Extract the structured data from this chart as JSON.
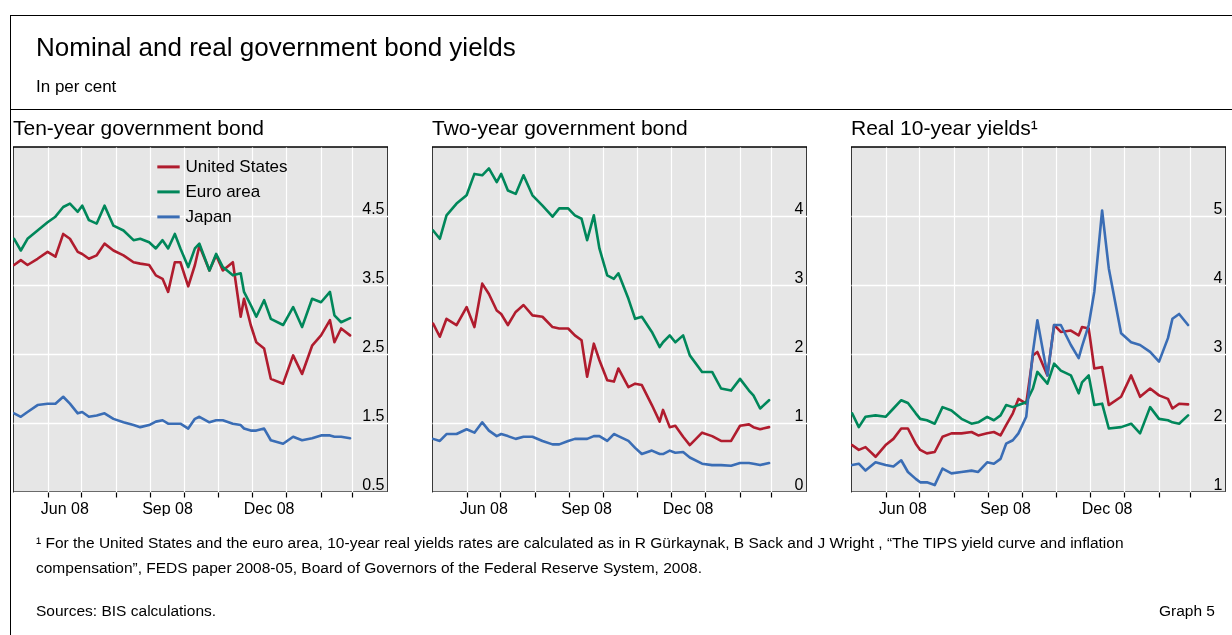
{
  "chart_data": [
    {
      "type": "other",
      "title": "Nominal and real government bond yields",
      "subtitle": "In per cent"
    },
    {
      "type": "line",
      "title": "Ten-year government bond",
      "legend": "top",
      "grid": true,
      "x": [
        "2008-05-02",
        "2008-05-08",
        "2008-05-14",
        "2008-05-23",
        "2008-06-01",
        "2008-06-08",
        "2008-06-15",
        "2008-06-21",
        "2008-06-28",
        "2008-07-02",
        "2008-07-08",
        "2008-07-15",
        "2008-07-22",
        "2008-07-30",
        "2008-08-08",
        "2008-08-17",
        "2008-08-23",
        "2008-08-31",
        "2008-09-06",
        "2008-09-12",
        "2008-09-17",
        "2008-09-23",
        "2008-09-28",
        "2008-10-05",
        "2008-10-11",
        "2008-10-15",
        "2008-10-24",
        "2008-10-30",
        "2008-11-05",
        "2008-11-14",
        "2008-11-21",
        "2008-11-24",
        "2008-11-30",
        "2008-12-05",
        "2008-12-12",
        "2008-12-18",
        "2008-12-29",
        "2009-01-07",
        "2009-01-15",
        "2009-01-24",
        "2009-02-01",
        "2009-02-09",
        "2009-02-13",
        "2009-02-19",
        "2009-02-27"
      ],
      "xlim": [
        "2008-05-01",
        "2009-04-02"
      ],
      "xticks": [
        {
          "value": "2008-06-01",
          "label": null
        },
        {
          "value": "2008-06-16",
          "label": "Jun 08"
        },
        {
          "value": "2008-07-01",
          "label": null
        },
        {
          "value": "2008-08-01",
          "label": null
        },
        {
          "value": "2008-09-01",
          "label": null
        },
        {
          "value": "2008-09-16",
          "label": "Sep 08"
        },
        {
          "value": "2008-10-01",
          "label": null
        },
        {
          "value": "2008-11-01",
          "label": null
        },
        {
          "value": "2008-12-01",
          "label": null
        },
        {
          "value": "2008-12-16",
          "label": "Dec 08"
        },
        {
          "value": "2009-01-01",
          "label": null
        },
        {
          "value": "2009-02-01",
          "label": null
        },
        {
          "value": "2009-03-01",
          "label": null
        }
      ],
      "ylim": [
        0.5,
        5.5
      ],
      "yticks": [
        0.5,
        1.5,
        2.5,
        3.5,
        4.5
      ],
      "series": [
        {
          "name": "United States",
          "color": "#b01c2e",
          "values": [
            3.79,
            3.86,
            3.79,
            3.88,
            3.98,
            3.91,
            4.24,
            4.17,
            3.98,
            3.95,
            3.88,
            3.93,
            4.1,
            4.0,
            3.93,
            3.83,
            3.81,
            3.79,
            3.64,
            3.59,
            3.4,
            3.83,
            3.83,
            3.48,
            3.79,
            4.07,
            3.71,
            3.93,
            3.71,
            3.83,
            3.04,
            3.3,
            2.92,
            2.67,
            2.58,
            2.14,
            2.07,
            2.48,
            2.21,
            2.62,
            2.77,
            2.99,
            2.67,
            2.87,
            2.77
          ]
        },
        {
          "name": "Euro area",
          "color": "#00875a",
          "values": [
            4.17,
            4.0,
            4.17,
            4.29,
            4.41,
            4.49,
            4.63,
            4.68,
            4.56,
            4.65,
            4.44,
            4.39,
            4.65,
            4.36,
            4.29,
            4.15,
            4.17,
            4.12,
            4.03,
            4.15,
            4.03,
            4.24,
            4.03,
            3.76,
            4.03,
            4.1,
            3.71,
            3.95,
            3.76,
            3.64,
            3.67,
            3.4,
            3.21,
            3.04,
            3.28,
            3.01,
            2.92,
            3.18,
            2.89,
            3.3,
            3.25,
            3.4,
            3.06,
            2.96,
            3.02
          ]
        },
        {
          "name": "Japan",
          "color": "#3a6db5",
          "values": [
            1.64,
            1.59,
            1.66,
            1.76,
            1.78,
            1.78,
            1.88,
            1.78,
            1.64,
            1.66,
            1.59,
            1.61,
            1.64,
            1.56,
            1.51,
            1.47,
            1.44,
            1.47,
            1.52,
            1.54,
            1.49,
            1.49,
            1.49,
            1.42,
            1.56,
            1.59,
            1.51,
            1.54,
            1.54,
            1.49,
            1.47,
            1.42,
            1.39,
            1.39,
            1.42,
            1.25,
            1.2,
            1.3,
            1.25,
            1.28,
            1.32,
            1.32,
            1.3,
            1.3,
            1.28
          ]
        }
      ]
    },
    {
      "type": "line",
      "title": "Two-year government bond",
      "grid": true,
      "x": [
        "2008-05-02",
        "2008-05-08",
        "2008-05-14",
        "2008-05-23",
        "2008-06-01",
        "2008-06-08",
        "2008-06-15",
        "2008-06-21",
        "2008-06-28",
        "2008-07-02",
        "2008-07-08",
        "2008-07-15",
        "2008-07-22",
        "2008-07-30",
        "2008-08-08",
        "2008-08-17",
        "2008-08-23",
        "2008-08-31",
        "2008-09-06",
        "2008-09-12",
        "2008-09-17",
        "2008-09-23",
        "2008-09-28",
        "2008-10-05",
        "2008-10-11",
        "2008-10-15",
        "2008-10-24",
        "2008-10-30",
        "2008-11-05",
        "2008-11-14",
        "2008-11-21",
        "2008-11-24",
        "2008-11-30",
        "2008-12-05",
        "2008-12-12",
        "2008-12-18",
        "2008-12-29",
        "2009-01-07",
        "2009-01-15",
        "2009-01-24",
        "2009-02-01",
        "2009-02-09",
        "2009-02-13",
        "2009-02-19",
        "2009-02-27"
      ],
      "xlim": [
        "2008-05-01",
        "2009-04-02"
      ],
      "xticks": [
        {
          "value": "2008-06-01",
          "label": null
        },
        {
          "value": "2008-06-16",
          "label": "Jun 08"
        },
        {
          "value": "2008-07-01",
          "label": null
        },
        {
          "value": "2008-08-01",
          "label": null
        },
        {
          "value": "2008-09-01",
          "label": null
        },
        {
          "value": "2008-09-16",
          "label": "Sep 08"
        },
        {
          "value": "2008-10-01",
          "label": null
        },
        {
          "value": "2008-11-01",
          "label": null
        },
        {
          "value": "2008-12-01",
          "label": null
        },
        {
          "value": "2008-12-16",
          "label": "Dec 08"
        },
        {
          "value": "2009-01-01",
          "label": null
        },
        {
          "value": "2009-02-01",
          "label": null
        },
        {
          "value": "2009-03-01",
          "label": null
        }
      ],
      "ylim": [
        0,
        5
      ],
      "yticks": [
        0,
        1,
        2,
        3,
        4
      ],
      "series": [
        {
          "color": "#b01c2e",
          "values": [
            2.44,
            2.25,
            2.51,
            2.42,
            2.68,
            2.39,
            3.02,
            2.87,
            2.63,
            2.58,
            2.42,
            2.61,
            2.71,
            2.56,
            2.54,
            2.39,
            2.37,
            2.37,
            2.27,
            2.2,
            1.67,
            2.15,
            1.91,
            1.62,
            1.6,
            1.79,
            1.52,
            1.57,
            1.55,
            1.26,
            1.02,
            1.19,
            0.94,
            0.96,
            0.8,
            0.68,
            0.86,
            0.81,
            0.74,
            0.74,
            0.96,
            0.98,
            0.94,
            0.91,
            0.94
          ]
        },
        {
          "color": "#00875a",
          "values": [
            3.79,
            3.67,
            4.01,
            4.18,
            4.3,
            4.61,
            4.59,
            4.69,
            4.49,
            4.61,
            4.37,
            4.32,
            4.59,
            4.3,
            4.15,
            3.99,
            4.11,
            4.11,
            4.01,
            3.96,
            3.65,
            4.01,
            3.53,
            3.14,
            3.09,
            3.17,
            2.8,
            2.51,
            2.54,
            2.32,
            2.1,
            2.17,
            2.27,
            2.17,
            2.27,
            1.98,
            1.74,
            1.74,
            1.5,
            1.47,
            1.64,
            1.47,
            1.4,
            1.21,
            1.33
          ]
        },
        {
          "color": "#3a6db5",
          "values": [
            0.77,
            0.74,
            0.84,
            0.84,
            0.91,
            0.86,
            1.01,
            0.89,
            0.81,
            0.84,
            0.81,
            0.77,
            0.8,
            0.8,
            0.74,
            0.69,
            0.69,
            0.74,
            0.77,
            0.77,
            0.77,
            0.81,
            0.81,
            0.74,
            0.84,
            0.81,
            0.74,
            0.64,
            0.55,
            0.6,
            0.55,
            0.55,
            0.6,
            0.57,
            0.58,
            0.5,
            0.41,
            0.39,
            0.39,
            0.38,
            0.42,
            0.42,
            0.41,
            0.39,
            0.42
          ]
        }
      ]
    },
    {
      "type": "line",
      "title": "Real 10-year yields¹",
      "grid": true,
      "x": [
        "2008-05-02",
        "2008-05-08",
        "2008-05-14",
        "2008-05-23",
        "2008-06-01",
        "2008-06-08",
        "2008-06-15",
        "2008-06-21",
        "2008-06-28",
        "2008-07-02",
        "2008-07-08",
        "2008-07-15",
        "2008-07-22",
        "2008-07-30",
        "2008-08-08",
        "2008-08-17",
        "2008-08-23",
        "2008-08-31",
        "2008-09-06",
        "2008-09-12",
        "2008-09-17",
        "2008-09-23",
        "2008-09-28",
        "2008-10-05",
        "2008-10-11",
        "2008-10-15",
        "2008-10-24",
        "2008-10-30",
        "2008-11-05",
        "2008-11-14",
        "2008-11-21",
        "2008-11-24",
        "2008-11-30",
        "2008-12-05",
        "2008-12-12",
        "2008-12-18",
        "2008-12-29",
        "2009-01-07",
        "2009-01-15",
        "2009-01-24",
        "2009-02-01",
        "2009-02-09",
        "2009-02-13",
        "2009-02-19",
        "2009-02-27"
      ],
      "xlim": [
        "2008-05-01",
        "2009-04-02"
      ],
      "xticks": [
        {
          "value": "2008-06-01",
          "label": null
        },
        {
          "value": "2008-06-16",
          "label": "Jun 08"
        },
        {
          "value": "2008-07-01",
          "label": null
        },
        {
          "value": "2008-08-01",
          "label": null
        },
        {
          "value": "2008-09-01",
          "label": null
        },
        {
          "value": "2008-09-16",
          "label": "Sep 08"
        },
        {
          "value": "2008-10-01",
          "label": null
        },
        {
          "value": "2008-11-01",
          "label": null
        },
        {
          "value": "2008-12-01",
          "label": null
        },
        {
          "value": "2008-12-16",
          "label": "Dec 08"
        },
        {
          "value": "2009-01-01",
          "label": null
        },
        {
          "value": "2009-02-01",
          "label": null
        },
        {
          "value": "2009-03-01",
          "label": null
        }
      ],
      "ylim": [
        1,
        6
      ],
      "yticks": [
        1,
        2,
        3,
        4,
        5
      ],
      "series": [
        {
          "color": "#b01c2e",
          "values": [
            1.68,
            1.61,
            1.65,
            1.51,
            1.68,
            1.77,
            1.92,
            1.92,
            1.7,
            1.61,
            1.56,
            1.58,
            1.8,
            1.85,
            1.85,
            1.87,
            1.82,
            1.85,
            1.87,
            1.82,
            1.97,
            2.14,
            2.35,
            2.28,
            2.98,
            3.03,
            2.69,
            3.42,
            3.32,
            3.34,
            3.27,
            3.39,
            3.37,
            2.79,
            2.81,
            2.26,
            2.38,
            2.69,
            2.38,
            2.5,
            2.4,
            2.35,
            2.21,
            2.28,
            2.27
          ]
        },
        {
          "color": "#00875a",
          "values": [
            2.14,
            1.94,
            2.09,
            2.11,
            2.09,
            2.21,
            2.33,
            2.29,
            2.14,
            2.06,
            2.04,
            1.99,
            2.23,
            2.18,
            2.06,
            1.99,
            2.01,
            2.09,
            2.04,
            2.11,
            2.26,
            2.23,
            2.26,
            2.3,
            2.5,
            2.74,
            2.57,
            2.86,
            2.76,
            2.69,
            2.43,
            2.59,
            2.69,
            2.26,
            2.28,
            1.92,
            1.94,
            1.99,
            1.85,
            2.23,
            2.06,
            2.04,
            2.01,
            1.99,
            2.11
          ]
        },
        {
          "color": "#3a6db5",
          "values": [
            1.39,
            1.41,
            1.31,
            1.43,
            1.39,
            1.37,
            1.46,
            1.29,
            1.19,
            1.14,
            1.14,
            1.1,
            1.34,
            1.27,
            1.29,
            1.31,
            1.29,
            1.43,
            1.41,
            1.48,
            1.7,
            1.75,
            1.85,
            2.09,
            3.03,
            3.49,
            2.69,
            3.42,
            3.42,
            3.13,
            2.94,
            3.11,
            3.42,
            3.9,
            5.08,
            4.24,
            3.3,
            3.17,
            3.13,
            3.03,
            2.89,
            3.23,
            3.51,
            3.58,
            3.42
          ]
        }
      ]
    },
    {
      "type": "other",
      "annotations": [
        "¹ For the United States and the euro area, 10-year real yields rates are calculated as in R Gürkaynak, B Sack and J Wright , “The TIPS yield curve and inflation compensation”, FEDS paper 2008-05, Board of Governors of the Federal Reserve System, 2008.",
        "Sources: BIS calculations.",
        "Graph 5"
      ]
    }
  ]
}
